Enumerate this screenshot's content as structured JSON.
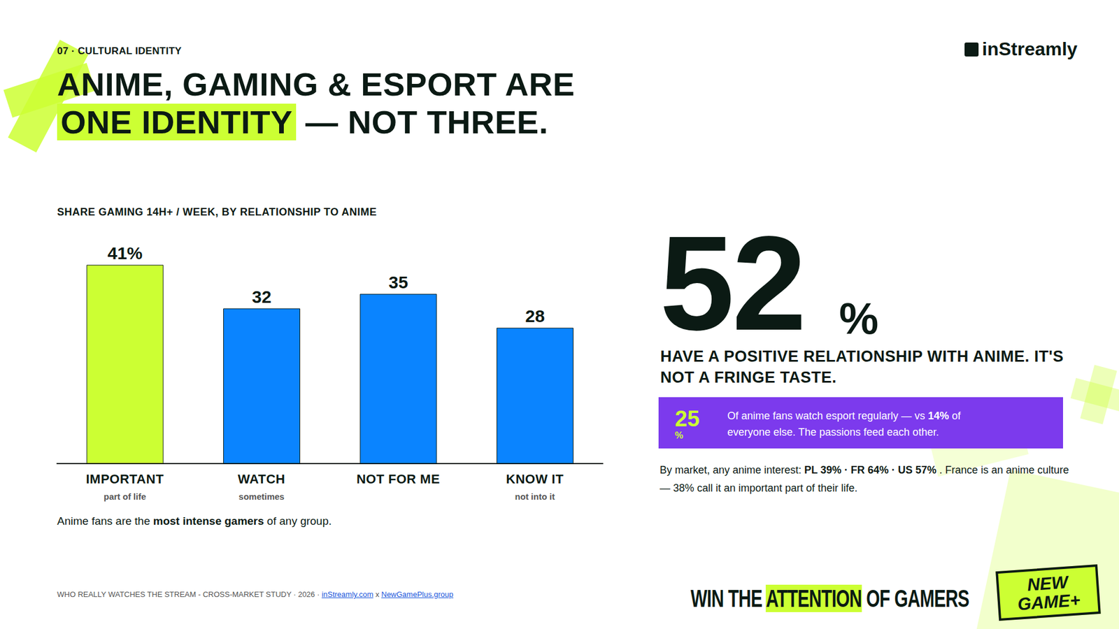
{
  "header": {
    "section": "07 · CULTURAL IDENTITY",
    "logo": "inStreamly",
    "title_before": "ANIME, GAMING & ESPORT ARE ",
    "title_highlight": "ONE IDENTITY",
    "title_after": " — NOT THREE."
  },
  "chart_data": {
    "type": "bar",
    "title": "SHARE GAMING 14H+ / WEEK, BY RELATIONSHIP TO ANIME",
    "categories": [
      "IMPORTANT",
      "WATCH",
      "NOT FOR ME",
      "KNOW IT"
    ],
    "category_sublabels": [
      "part of life",
      "sometimes",
      null,
      "not into it"
    ],
    "values": [
      41,
      32,
      35,
      28
    ],
    "value_labels": [
      "41%",
      "32",
      "35",
      "28"
    ],
    "colors": [
      "#ccff33",
      "#0a84ff",
      "#0a84ff",
      "#0a84ff"
    ],
    "ylim": [
      0,
      45
    ],
    "grid": false,
    "data_labels": true,
    "tick_labels": "x",
    "note": [
      {
        "text": "Anime fans are the ",
        "bold": false
      },
      {
        "text": "most intense gamers",
        "bold": true
      },
      {
        "text": " of any group.",
        "bold": false
      }
    ]
  },
  "stat": {
    "value": 52,
    "unit": "%",
    "text": "HAVE A POSITIVE RELATIONSHIP WITH ANIME. IT'S NOT A FRINGE TASTE."
  },
  "callout": {
    "value": 25,
    "unit": "%",
    "text": [
      {
        "text": "Of anime fans watch esport regularly — vs ",
        "bold": false
      },
      {
        "text": "14%",
        "bold": true
      },
      {
        "text": " of everyone else. The passions feed each other.",
        "bold": false
      }
    ]
  },
  "market_note": [
    {
      "text": "By market, any anime interest: ",
      "bold": false
    },
    {
      "text": "PL 39% · FR 64% · US 57%",
      "bold": true
    },
    {
      "text": " . France is an anime culture — 38% call it an important part of their life.",
      "bold": false
    }
  ],
  "footer": {
    "source": "WHO REALLY WATCHES THE STREAM - CROSS-MARKET STUDY · 2026 · ",
    "link1": "inStreamly.com",
    "joiner": " x ",
    "link2": "NewGamePlus.group",
    "tagline_before": "WIN THE ",
    "tagline_highlight": "ATTENTION",
    "tagline_after": " OF GAMERS",
    "badge": [
      "NEW",
      "GAME+"
    ]
  }
}
